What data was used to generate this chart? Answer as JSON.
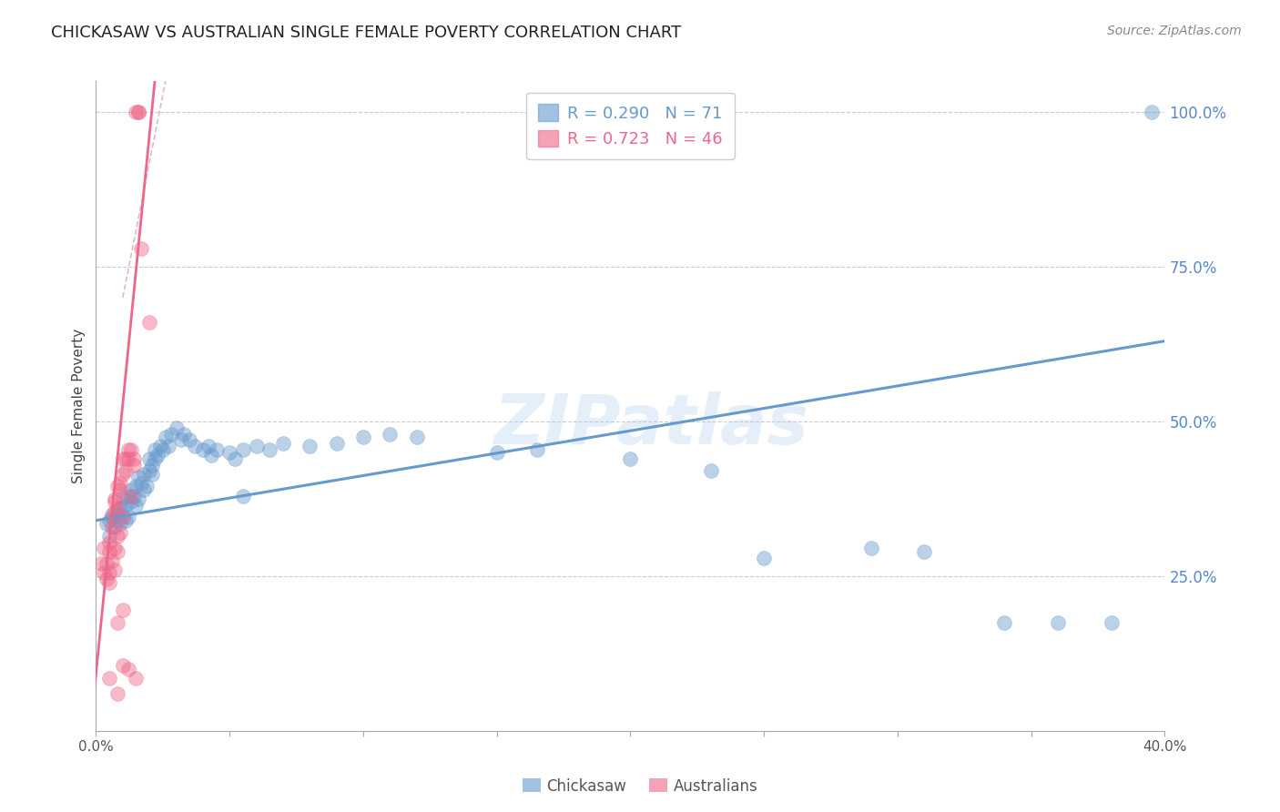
{
  "title": "CHICKASAW VS AUSTRALIAN SINGLE FEMALE POVERTY CORRELATION CHART",
  "source": "Source: ZipAtlas.com",
  "ylabel": "Single Female Poverty",
  "right_ytick_labels": [
    "100.0%",
    "75.0%",
    "50.0%",
    "25.0%"
  ],
  "right_ytick_values": [
    1.0,
    0.75,
    0.5,
    0.25
  ],
  "xlim": [
    0.0,
    0.4
  ],
  "ylim": [
    0.0,
    1.05
  ],
  "legend_label_blue": "R = 0.290   N = 71",
  "legend_label_pink": "R = 0.723   N = 46",
  "title_color": "#222222",
  "title_fontsize": 13,
  "source_color": "#888888",
  "source_fontsize": 10,
  "ylabel_color": "#444444",
  "right_label_color": "#5588cc",
  "watermark_text": "ZIPatlas",
  "watermark_color": "#aaccee",
  "watermark_alpha": 0.3,
  "chickasaw_color": "#6699cc",
  "australians_color": "#ee6688",
  "chickasaw_scatter": [
    [
      0.004,
      0.335
    ],
    [
      0.005,
      0.34
    ],
    [
      0.005,
      0.315
    ],
    [
      0.006,
      0.345
    ],
    [
      0.007,
      0.355
    ],
    [
      0.007,
      0.33
    ],
    [
      0.008,
      0.35
    ],
    [
      0.008,
      0.34
    ],
    [
      0.009,
      0.36
    ],
    [
      0.009,
      0.335
    ],
    [
      0.01,
      0.375
    ],
    [
      0.01,
      0.35
    ],
    [
      0.011,
      0.365
    ],
    [
      0.011,
      0.34
    ],
    [
      0.012,
      0.38
    ],
    [
      0.012,
      0.345
    ],
    [
      0.013,
      0.37
    ],
    [
      0.013,
      0.39
    ],
    [
      0.014,
      0.38
    ],
    [
      0.015,
      0.395
    ],
    [
      0.015,
      0.365
    ],
    [
      0.016,
      0.41
    ],
    [
      0.016,
      0.375
    ],
    [
      0.017,
      0.4
    ],
    [
      0.018,
      0.415
    ],
    [
      0.018,
      0.39
    ],
    [
      0.019,
      0.395
    ],
    [
      0.02,
      0.42
    ],
    [
      0.02,
      0.44
    ],
    [
      0.021,
      0.43
    ],
    [
      0.021,
      0.415
    ],
    [
      0.022,
      0.44
    ],
    [
      0.022,
      0.455
    ],
    [
      0.023,
      0.445
    ],
    [
      0.024,
      0.46
    ],
    [
      0.025,
      0.455
    ],
    [
      0.026,
      0.475
    ],
    [
      0.027,
      0.46
    ],
    [
      0.028,
      0.48
    ],
    [
      0.03,
      0.49
    ],
    [
      0.032,
      0.47
    ],
    [
      0.033,
      0.48
    ],
    [
      0.035,
      0.47
    ],
    [
      0.037,
      0.46
    ],
    [
      0.04,
      0.455
    ],
    [
      0.042,
      0.46
    ],
    [
      0.043,
      0.445
    ],
    [
      0.045,
      0.455
    ],
    [
      0.05,
      0.45
    ],
    [
      0.052,
      0.44
    ],
    [
      0.055,
      0.455
    ],
    [
      0.06,
      0.46
    ],
    [
      0.065,
      0.455
    ],
    [
      0.07,
      0.465
    ],
    [
      0.08,
      0.46
    ],
    [
      0.09,
      0.465
    ],
    [
      0.1,
      0.475
    ],
    [
      0.11,
      0.48
    ],
    [
      0.12,
      0.475
    ],
    [
      0.15,
      0.45
    ],
    [
      0.165,
      0.455
    ],
    [
      0.2,
      0.44
    ],
    [
      0.23,
      0.42
    ],
    [
      0.25,
      0.28
    ],
    [
      0.29,
      0.295
    ],
    [
      0.31,
      0.29
    ],
    [
      0.34,
      0.175
    ],
    [
      0.36,
      0.175
    ],
    [
      0.38,
      0.175
    ],
    [
      0.055,
      0.38
    ],
    [
      0.395,
      1.0
    ]
  ],
  "australians_scatter": [
    [
      0.002,
      0.27
    ],
    [
      0.003,
      0.295
    ],
    [
      0.003,
      0.255
    ],
    [
      0.004,
      0.245
    ],
    [
      0.004,
      0.27
    ],
    [
      0.005,
      0.255
    ],
    [
      0.005,
      0.29
    ],
    [
      0.005,
      0.305
    ],
    [
      0.005,
      0.24
    ],
    [
      0.006,
      0.35
    ],
    [
      0.006,
      0.33
    ],
    [
      0.006,
      0.275
    ],
    [
      0.007,
      0.375
    ],
    [
      0.007,
      0.37
    ],
    [
      0.007,
      0.295
    ],
    [
      0.007,
      0.26
    ],
    [
      0.008,
      0.395
    ],
    [
      0.008,
      0.36
    ],
    [
      0.008,
      0.315
    ],
    [
      0.008,
      0.29
    ],
    [
      0.008,
      0.175
    ],
    [
      0.009,
      0.4
    ],
    [
      0.009,
      0.39
    ],
    [
      0.009,
      0.32
    ],
    [
      0.01,
      0.44
    ],
    [
      0.01,
      0.415
    ],
    [
      0.01,
      0.345
    ],
    [
      0.01,
      0.195
    ],
    [
      0.011,
      0.44
    ],
    [
      0.011,
      0.42
    ],
    [
      0.012,
      0.455
    ],
    [
      0.012,
      0.44
    ],
    [
      0.013,
      0.455
    ],
    [
      0.013,
      0.38
    ],
    [
      0.014,
      0.44
    ],
    [
      0.014,
      0.43
    ],
    [
      0.015,
      1.0
    ],
    [
      0.016,
      1.0
    ],
    [
      0.016,
      1.0
    ],
    [
      0.017,
      0.78
    ],
    [
      0.02,
      0.66
    ],
    [
      0.01,
      0.105
    ],
    [
      0.012,
      0.1
    ],
    [
      0.015,
      0.085
    ],
    [
      0.005,
      0.085
    ],
    [
      0.008,
      0.06
    ]
  ],
  "blue_line_x": [
    0.0,
    0.4
  ],
  "blue_line_y": [
    0.34,
    0.63
  ],
  "pink_line_x": [
    -0.002,
    0.022
  ],
  "pink_line_y": [
    0.005,
    1.05
  ],
  "diag_line_x": [
    0.01,
    0.026
  ],
  "diag_line_y": [
    0.7,
    1.05
  ],
  "grid_color": "#cccccc",
  "background_color": "#ffffff"
}
